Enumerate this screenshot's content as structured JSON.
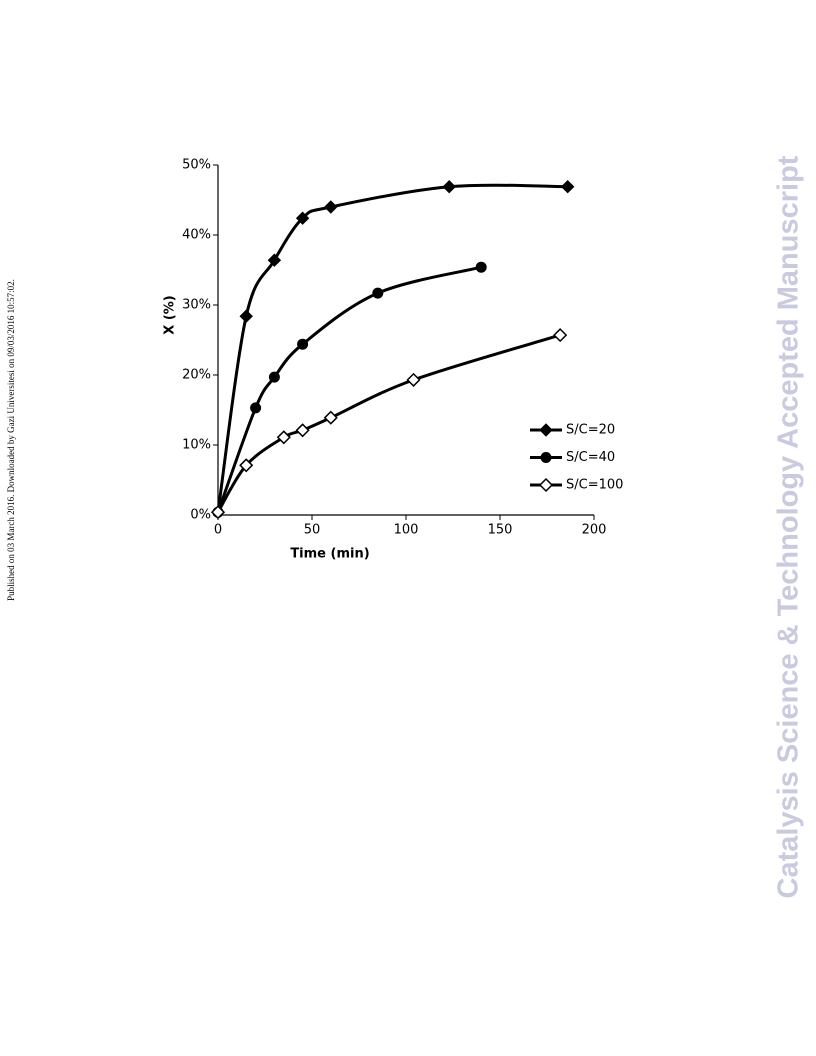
{
  "side_note": "Published on 03 March 2016. Downloaded by Gazi Universitesi on 09/03/2016 10:57:02.",
  "watermark": "Catalysis Science & Technology Accepted Manuscript",
  "chart_data": {
    "type": "line",
    "xlabel": "Time (min)",
    "ylabel": "X (%)",
    "xlim": [
      0,
      200
    ],
    "xticks": [
      0,
      50,
      100,
      150,
      200
    ],
    "ylim": [
      0,
      50
    ],
    "yticks": [
      {
        "value": 0,
        "label": "0%"
      },
      {
        "value": 10,
        "label": "10%"
      },
      {
        "value": 20,
        "label": "20%"
      },
      {
        "value": 30,
        "label": "30%"
      },
      {
        "value": 40,
        "label": "40%"
      },
      {
        "value": 50,
        "label": "50%"
      }
    ],
    "legend": "lower right",
    "series": [
      {
        "name": "S/C=20",
        "color": "#000000",
        "marker": "diamond",
        "x": [
          0,
          15,
          30,
          45,
          60,
          123,
          186
        ],
        "values": [
          0.4,
          28.4,
          36.4,
          42.4,
          44,
          46.9,
          46.9
        ]
      },
      {
        "name": "S/C=40",
        "color": "#000000",
        "marker": "circle",
        "x": [
          0,
          20,
          30,
          45,
          85,
          140
        ],
        "values": [
          0.4,
          15.3,
          19.7,
          24.4,
          31.7,
          35.4
        ]
      },
      {
        "name": "S/C=100",
        "color": "#000000",
        "marker": "diamond-open",
        "x": [
          0,
          15,
          35,
          45,
          60,
          104,
          182
        ],
        "values": [
          0.4,
          7.1,
          11.1,
          12.1,
          13.9,
          19.3,
          25.7
        ]
      }
    ]
  }
}
